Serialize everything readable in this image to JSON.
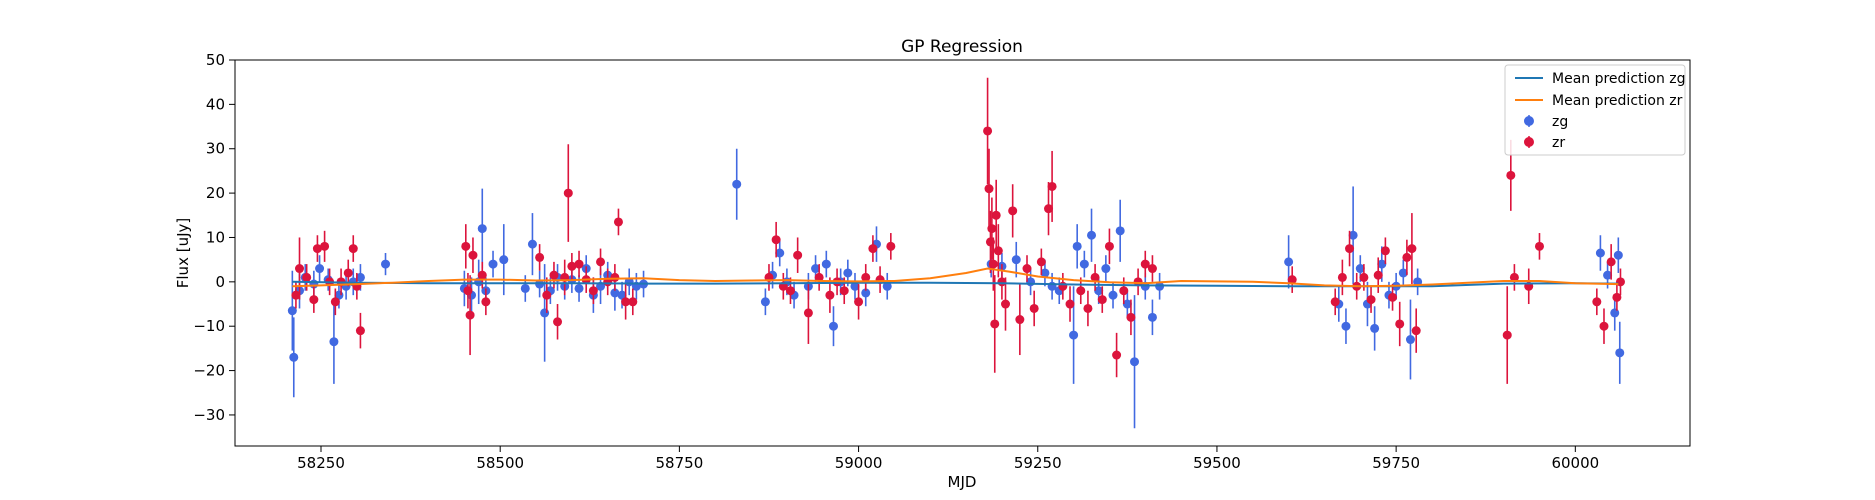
{
  "chart_data": {
    "type": "scatter",
    "title": "GP Regression",
    "xlabel": "MJD",
    "ylabel": "Flux [uJy]",
    "xlim": [
      58130,
      60160
    ],
    "ylim": [
      -37,
      50
    ],
    "xticks": [
      58250,
      58500,
      58750,
      59000,
      59250,
      59500,
      59750,
      60000
    ],
    "yticks": [
      -30,
      -20,
      -10,
      0,
      10,
      20,
      30,
      40,
      50
    ],
    "grid": false,
    "legend_position": "top-right",
    "colors": {
      "zg_line": "#1f77b4",
      "zr_line": "#ff7f0e",
      "zg_points": "#4169e1",
      "zr_points": "#dc143c"
    },
    "lines": [
      {
        "name": "Mean prediction zg",
        "x": [
          58210,
          58300,
          58400,
          58500,
          58600,
          58700,
          58800,
          58900,
          59000,
          59100,
          59200,
          59300,
          59400,
          59500,
          59600,
          59700,
          59800,
          59900,
          60000,
          60060
        ],
        "y": [
          0,
          -0.2,
          -0.3,
          -0.3,
          -0.3,
          -0.4,
          -0.4,
          -0.3,
          -0.2,
          -0.2,
          -0.3,
          -0.6,
          -0.8,
          -0.9,
          -1.0,
          -1.0,
          -1.0,
          -0.4,
          -0.3,
          -0.4
        ]
      },
      {
        "name": "Mean prediction zr",
        "x": [
          58210,
          58250,
          58300,
          58350,
          58400,
          58450,
          58500,
          58550,
          58600,
          58650,
          58700,
          58750,
          58800,
          58850,
          58900,
          58950,
          59000,
          59050,
          59100,
          59150,
          59180,
          59210,
          59250,
          59300,
          59350,
          59400,
          59450,
          59500,
          59550,
          59600,
          59650,
          59700,
          59750,
          59800,
          59850,
          59900,
          59950,
          60000,
          60060
        ],
        "y": [
          -1.0,
          -0.8,
          -0.5,
          -0.2,
          0.2,
          0.5,
          0.5,
          0.3,
          0.4,
          0.7,
          0.8,
          0.4,
          0.2,
          0.3,
          0.4,
          0.2,
          0.1,
          0.2,
          0.8,
          2.0,
          3.0,
          2.3,
          1.2,
          0.4,
          -0.1,
          -0.3,
          0.2,
          0.1,
          0.0,
          -0.3,
          -0.8,
          -1.0,
          -0.9,
          -0.6,
          -0.2,
          0.2,
          0.2,
          -0.3,
          -0.5
        ]
      }
    ],
    "series": [
      {
        "name": "zg",
        "points": [
          [
            58210,
            -6.5,
            9
          ],
          [
            58212,
            -17,
            9
          ],
          [
            58220,
            -2,
            4
          ],
          [
            58228,
            1,
            3
          ],
          [
            58240,
            -0.5,
            3
          ],
          [
            58248,
            3,
            3
          ],
          [
            58260,
            0.5,
            2.5
          ],
          [
            58268,
            -13.5,
            9.5
          ],
          [
            58275,
            -3,
            3
          ],
          [
            58285,
            -1,
            3
          ],
          [
            58295,
            0,
            3
          ],
          [
            58305,
            1,
            3
          ],
          [
            58340,
            4,
            2.5
          ],
          [
            58450,
            -1.5,
            4
          ],
          [
            58460,
            -3,
            4
          ],
          [
            58470,
            0,
            5
          ],
          [
            58475,
            12,
            9
          ],
          [
            58480,
            -2,
            3
          ],
          [
            58490,
            4,
            3
          ],
          [
            58505,
            5,
            8
          ],
          [
            58535,
            -1.5,
            3
          ],
          [
            58545,
            8.5,
            7
          ],
          [
            58555,
            -0.5,
            3
          ],
          [
            58562,
            -7,
            11
          ],
          [
            58570,
            -2,
            3
          ],
          [
            58580,
            1,
            3
          ],
          [
            58590,
            -1,
            3
          ],
          [
            58600,
            0.5,
            3
          ],
          [
            58610,
            -1.5,
            3
          ],
          [
            58620,
            3,
            3
          ],
          [
            58630,
            -3,
            4
          ],
          [
            58640,
            -1,
            4
          ],
          [
            58650,
            1.5,
            3
          ],
          [
            58660,
            -2.5,
            4
          ],
          [
            58670,
            -3,
            3
          ],
          [
            58680,
            0,
            3
          ],
          [
            58690,
            -1,
            3
          ],
          [
            58700,
            -0.5,
            3
          ],
          [
            58830,
            22,
            8
          ],
          [
            58870,
            -4.5,
            3
          ],
          [
            58880,
            1.5,
            3
          ],
          [
            58890,
            6.5,
            3
          ],
          [
            58900,
            0,
            3
          ],
          [
            58910,
            -3,
            3
          ],
          [
            58930,
            -1,
            3
          ],
          [
            58940,
            3,
            3
          ],
          [
            58955,
            4,
            3
          ],
          [
            58965,
            -10,
            4.5
          ],
          [
            58975,
            0,
            3
          ],
          [
            58985,
            2,
            3
          ],
          [
            58995,
            -1,
            3
          ],
          [
            59010,
            -2.5,
            3
          ],
          [
            59025,
            8.5,
            4
          ],
          [
            59040,
            -1,
            3
          ],
          [
            59185,
            4,
            3
          ],
          [
            59200,
            3.5,
            3
          ],
          [
            59220,
            5,
            4
          ],
          [
            59240,
            0,
            3
          ],
          [
            59260,
            2,
            3
          ],
          [
            59270,
            -1,
            3
          ],
          [
            59280,
            -2,
            3
          ],
          [
            59300,
            -12,
            11
          ],
          [
            59305,
            8,
            5
          ],
          [
            59315,
            4,
            3
          ],
          [
            59325,
            10.5,
            6
          ],
          [
            59335,
            -2,
            3
          ],
          [
            59345,
            3,
            3
          ],
          [
            59355,
            -3,
            3
          ],
          [
            59365,
            11.5,
            7
          ],
          [
            59375,
            -5,
            3
          ],
          [
            59385,
            -18,
            15
          ],
          [
            59400,
            -1,
            3
          ],
          [
            59410,
            -8,
            4
          ],
          [
            59420,
            -1,
            3
          ],
          [
            59600,
            4.5,
            6
          ],
          [
            59670,
            -5,
            4
          ],
          [
            59680,
            -10,
            4
          ],
          [
            59690,
            10.5,
            11
          ],
          [
            59700,
            3,
            3
          ],
          [
            59710,
            -5,
            5
          ],
          [
            59720,
            -10.5,
            5
          ],
          [
            59730,
            4,
            4
          ],
          [
            59740,
            -3,
            3
          ],
          [
            59750,
            -1,
            3
          ],
          [
            59760,
            2,
            3
          ],
          [
            59770,
            -13,
            9
          ],
          [
            59780,
            0,
            3
          ],
          [
            60035,
            6.5,
            4
          ],
          [
            60045,
            1.5,
            3
          ],
          [
            60055,
            -7,
            4
          ],
          [
            60060,
            6,
            4
          ],
          [
            60062,
            -16,
            7
          ]
        ]
      },
      {
        "name": "zr",
        "points": [
          [
            58215,
            -3,
            3
          ],
          [
            58220,
            3,
            7
          ],
          [
            58230,
            1,
            3
          ],
          [
            58240,
            -4,
            3
          ],
          [
            58245,
            7.5,
            3
          ],
          [
            58255,
            8,
            3.5
          ],
          [
            58262,
            0,
            3
          ],
          [
            58270,
            -4.5,
            3
          ],
          [
            58278,
            0,
            3
          ],
          [
            58288,
            2,
            3
          ],
          [
            58295,
            7.5,
            3
          ],
          [
            58300,
            -1,
            3
          ],
          [
            58305,
            -11,
            4
          ],
          [
            58452,
            8,
            5
          ],
          [
            58455,
            -2,
            4
          ],
          [
            58458,
            -7.5,
            9
          ],
          [
            58462,
            6,
            4
          ],
          [
            58475,
            1.5,
            3
          ],
          [
            58480,
            -4.5,
            3
          ],
          [
            58555,
            5.5,
            3
          ],
          [
            58565,
            -3,
            4
          ],
          [
            58575,
            1.5,
            3
          ],
          [
            58580,
            -9,
            4
          ],
          [
            58590,
            1,
            4
          ],
          [
            58595,
            20,
            11
          ],
          [
            58600,
            3.5,
            3
          ],
          [
            58610,
            4,
            3
          ],
          [
            58620,
            0.5,
            3
          ],
          [
            58630,
            -2,
            3
          ],
          [
            58640,
            4.5,
            3
          ],
          [
            58650,
            0,
            3
          ],
          [
            58660,
            1,
            3
          ],
          [
            58665,
            13.5,
            3
          ],
          [
            58675,
            -4.5,
            4
          ],
          [
            58685,
            -4.5,
            3
          ],
          [
            58875,
            1,
            3
          ],
          [
            58885,
            9.5,
            4
          ],
          [
            58895,
            -1,
            3
          ],
          [
            58905,
            -2,
            3
          ],
          [
            58915,
            6,
            4
          ],
          [
            58930,
            -7,
            7
          ],
          [
            58945,
            1,
            3
          ],
          [
            58960,
            -3,
            4
          ],
          [
            58970,
            0,
            3
          ],
          [
            58980,
            -2,
            3
          ],
          [
            59000,
            -4.5,
            4
          ],
          [
            59010,
            1,
            3
          ],
          [
            59020,
            7.5,
            3
          ],
          [
            59030,
            0.5,
            3
          ],
          [
            59045,
            8,
            3
          ],
          [
            59180,
            34,
            12
          ],
          [
            59182,
            21,
            9
          ],
          [
            59184,
            9,
            7
          ],
          [
            59186,
            12,
            7
          ],
          [
            59188,
            4,
            6
          ],
          [
            59190,
            -9.5,
            11
          ],
          [
            59192,
            15,
            8
          ],
          [
            59195,
            7,
            6
          ],
          [
            59200,
            0,
            4
          ],
          [
            59205,
            -5,
            6
          ],
          [
            59215,
            16,
            6
          ],
          [
            59225,
            -8.5,
            8
          ],
          [
            59235,
            3,
            3
          ],
          [
            59245,
            -6,
            4
          ],
          [
            59255,
            4.5,
            3
          ],
          [
            59265,
            16.5,
            6
          ],
          [
            59270,
            21.5,
            8
          ],
          [
            59285,
            -1,
            3
          ],
          [
            59295,
            -5,
            4
          ],
          [
            59310,
            -2,
            3
          ],
          [
            59320,
            -6,
            4
          ],
          [
            59330,
            1,
            3
          ],
          [
            59340,
            -4,
            3
          ],
          [
            59350,
            8,
            4
          ],
          [
            59360,
            -16.5,
            5
          ],
          [
            59370,
            -2,
            3
          ],
          [
            59380,
            -8,
            4
          ],
          [
            59390,
            0,
            3
          ],
          [
            59400,
            4,
            3
          ],
          [
            59410,
            3,
            3
          ],
          [
            59605,
            0.5,
            3
          ],
          [
            59665,
            -4.5,
            3
          ],
          [
            59675,
            1,
            4
          ],
          [
            59685,
            7.5,
            4
          ],
          [
            59695,
            -1,
            3
          ],
          [
            59705,
            1,
            3
          ],
          [
            59715,
            -4,
            3
          ],
          [
            59725,
            1.5,
            4
          ],
          [
            59735,
            7,
            3
          ],
          [
            59745,
            -3.5,
            3
          ],
          [
            59755,
            -9.5,
            5
          ],
          [
            59765,
            5.5,
            4
          ],
          [
            59772,
            7.5,
            8
          ],
          [
            59778,
            -11,
            5
          ],
          [
            59905,
            -12,
            11
          ],
          [
            59910,
            24,
            8
          ],
          [
            59915,
            1,
            3
          ],
          [
            59935,
            -1,
            4
          ],
          [
            59950,
            8,
            3
          ],
          [
            60030,
            -4.5,
            3
          ],
          [
            60040,
            -10,
            4
          ],
          [
            60050,
            4.5,
            4
          ],
          [
            60058,
            -3.5,
            3
          ],
          [
            60063,
            0,
            3
          ]
        ]
      }
    ]
  }
}
